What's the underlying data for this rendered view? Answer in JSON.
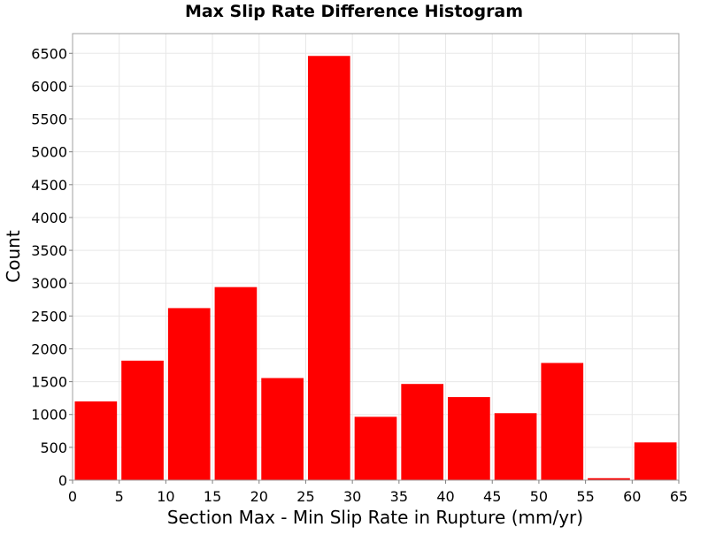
{
  "chart_data": {
    "type": "bar",
    "title": "Max Slip Rate Difference Histogram",
    "xlabel": "Section Max - Min Slip Rate in Rupture (mm/yr)",
    "ylabel": "Count",
    "bin_width": 5,
    "bins": [
      {
        "start": 0,
        "end": 5,
        "value": 1200
      },
      {
        "start": 5,
        "end": 10,
        "value": 1820
      },
      {
        "start": 10,
        "end": 15,
        "value": 2620
      },
      {
        "start": 15,
        "end": 20,
        "value": 2940
      },
      {
        "start": 20,
        "end": 25,
        "value": 1555
      },
      {
        "start": 25,
        "end": 30,
        "value": 6460
      },
      {
        "start": 30,
        "end": 35,
        "value": 965
      },
      {
        "start": 35,
        "end": 40,
        "value": 1465
      },
      {
        "start": 40,
        "end": 45,
        "value": 1265
      },
      {
        "start": 45,
        "end": 50,
        "value": 1020
      },
      {
        "start": 50,
        "end": 55,
        "value": 1785
      },
      {
        "start": 55,
        "end": 60,
        "value": 30
      },
      {
        "start": 60,
        "end": 65,
        "value": 575
      }
    ],
    "xlim": [
      0,
      65
    ],
    "ylim": [
      0,
      6800
    ],
    "x_ticks": [
      "0",
      "5",
      "10",
      "15",
      "20",
      "25",
      "30",
      "35",
      "40",
      "45",
      "50",
      "55",
      "60",
      "65"
    ],
    "y_ticks": [
      "0",
      "500",
      "1000",
      "1500",
      "2000",
      "2500",
      "3000",
      "3500",
      "4000",
      "4500",
      "5000",
      "5500",
      "6000",
      "6500"
    ],
    "grid": true,
    "bar_color": "#ff0000",
    "legend": "none"
  }
}
